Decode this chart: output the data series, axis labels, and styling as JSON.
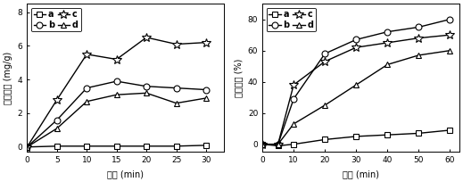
{
  "left": {
    "title_y": "吸附容量 (mg/g)",
    "title_x": "时间 (min)",
    "xlim": [
      0,
      33
    ],
    "ylim": [
      -0.3,
      8.5
    ],
    "xticks": [
      0,
      5,
      10,
      15,
      20,
      25,
      30
    ],
    "yticks": [
      0,
      2,
      4,
      6,
      8
    ],
    "series": {
      "a": {
        "x": [
          0,
          5,
          10,
          15,
          20,
          25,
          30
        ],
        "y": [
          0,
          0.05,
          0.05,
          0.05,
          0.05,
          0.05,
          0.1
        ],
        "marker": "s",
        "label": "a"
      },
      "b": {
        "x": [
          0,
          5,
          10,
          15,
          20,
          25,
          30
        ],
        "y": [
          0,
          1.6,
          3.5,
          3.9,
          3.6,
          3.5,
          3.4
        ],
        "marker": "o",
        "label": "b"
      },
      "c": {
        "x": [
          0,
          5,
          10,
          15,
          20,
          25,
          30
        ],
        "y": [
          0,
          2.8,
          5.5,
          5.2,
          6.5,
          6.1,
          6.2
        ],
        "marker": "*",
        "label": "c"
      },
      "d": {
        "x": [
          0,
          5,
          10,
          15,
          20,
          25,
          30
        ],
        "y": [
          0,
          1.1,
          2.7,
          3.1,
          3.2,
          2.6,
          2.9
        ],
        "marker": "^",
        "label": "d"
      }
    },
    "legend_order": [
      "a",
      "b",
      "c",
      "d"
    ]
  },
  "right": {
    "title_y": "光降解率 (%)",
    "title_x": "时间 (min)",
    "xlim": [
      0,
      63
    ],
    "ylim": [
      -5,
      90
    ],
    "xticks": [
      0,
      10,
      20,
      30,
      40,
      50,
      60
    ],
    "yticks": [
      0,
      20,
      40,
      60,
      80
    ],
    "series": {
      "a": {
        "x": [
          0,
          5,
          10,
          20,
          30,
          40,
          50,
          60
        ],
        "y": [
          0,
          -1,
          0,
          3,
          5,
          6,
          7,
          9
        ],
        "marker": "s",
        "label": "a"
      },
      "b": {
        "x": [
          0,
          5,
          10,
          20,
          30,
          40,
          50,
          60
        ],
        "y": [
          0,
          0,
          29,
          58,
          67,
          72,
          75,
          80
        ],
        "marker": "o",
        "label": "b"
      },
      "c": {
        "x": [
          0,
          5,
          10,
          20,
          30,
          40,
          50,
          60
        ],
        "y": [
          0,
          0,
          38,
          53,
          62,
          65,
          68,
          70
        ],
        "marker": "*",
        "label": "c"
      },
      "d": {
        "x": [
          0,
          5,
          10,
          20,
          30,
          40,
          50,
          60
        ],
        "y": [
          0,
          0,
          13,
          25,
          38,
          51,
          57,
          60
        ],
        "marker": "^",
        "label": "d"
      }
    },
    "legend_order": [
      "a",
      "b",
      "c",
      "d"
    ]
  },
  "line_color": "#000000",
  "linewidth": 1.0
}
